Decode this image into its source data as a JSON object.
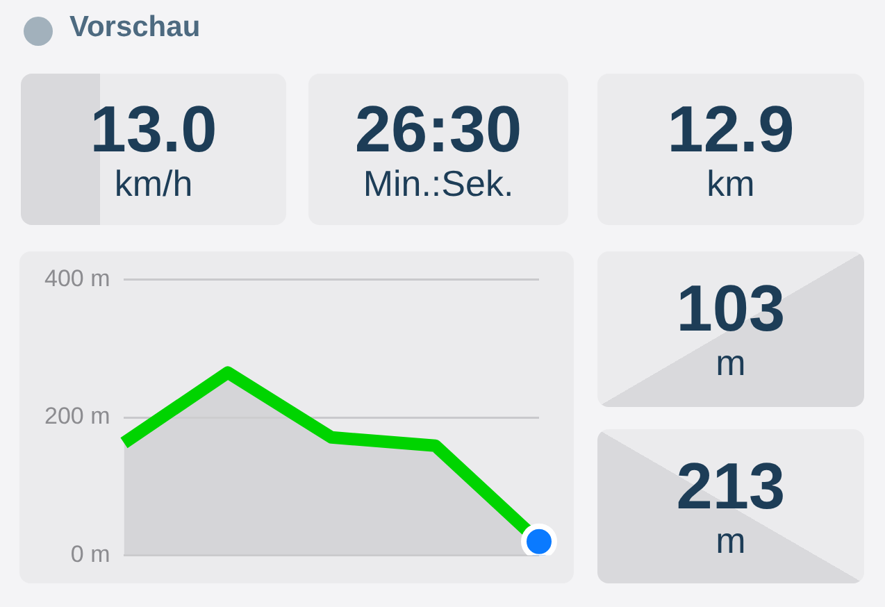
{
  "chart_data": {
    "type": "area",
    "title": "Vorschau",
    "categories": [
      null,
      null,
      null,
      null,
      null
    ],
    "series": [
      {
        "color": "#00d400",
        "values": [
          163,
          265,
          171,
          159,
          20
        ]
      },
      {
        "type": "scatter",
        "color": "#0a7aff",
        "values": [
          null,
          null,
          null,
          null,
          20
        ]
      }
    ],
    "ylim": [
      0,
      400
    ],
    "yticks": [
      {
        "value": 0,
        "label": "0 m"
      },
      {
        "value": 200,
        "label": "200 m"
      },
      {
        "value": 400,
        "label": "400 m"
      }
    ],
    "grid": "y",
    "legend": false,
    "tick_labels": "y",
    "annotations": [
      "13.0",
      "km/h",
      "26:30",
      "Min.:Sek.",
      "12.9",
      "km",
      "103",
      "m",
      "213",
      "m"
    ]
  }
}
